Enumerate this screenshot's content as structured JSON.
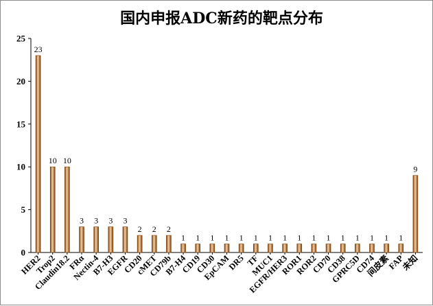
{
  "chart_data": {
    "type": "bar",
    "title": "国内申报ADC新药的靶点分布",
    "xlabel": "",
    "ylabel": "",
    "ylim": [
      0,
      25
    ],
    "yticks": [
      0,
      5,
      10,
      15,
      20,
      25
    ],
    "grid": false,
    "legend": "none",
    "categories": [
      "HER2",
      "Trop2",
      "Claudin18.2",
      "FRα",
      "Nectin-4",
      "B7-H3",
      "EGFR",
      "CD20",
      "cMET",
      "CD79b",
      "B7-H4",
      "CD19",
      "CD30",
      "EpCAM",
      "DR5",
      "TF",
      "MUC1",
      "EGFR/HER3",
      "ROR1",
      "ROR2",
      "CD70",
      "CD38",
      "GPRC5D",
      "CD74",
      "间皮素",
      "FAP",
      "未知"
    ],
    "values": [
      23,
      10,
      10,
      3,
      3,
      3,
      3,
      2,
      2,
      2,
      1,
      1,
      1,
      1,
      1,
      1,
      1,
      1,
      1,
      1,
      1,
      1,
      1,
      1,
      1,
      1,
      9
    ],
    "colors": {
      "bar_dark": "#7a3d08",
      "bar_mid": "#e3a065",
      "bar_light": "#f6d2a8",
      "axis": "#000000"
    }
  }
}
